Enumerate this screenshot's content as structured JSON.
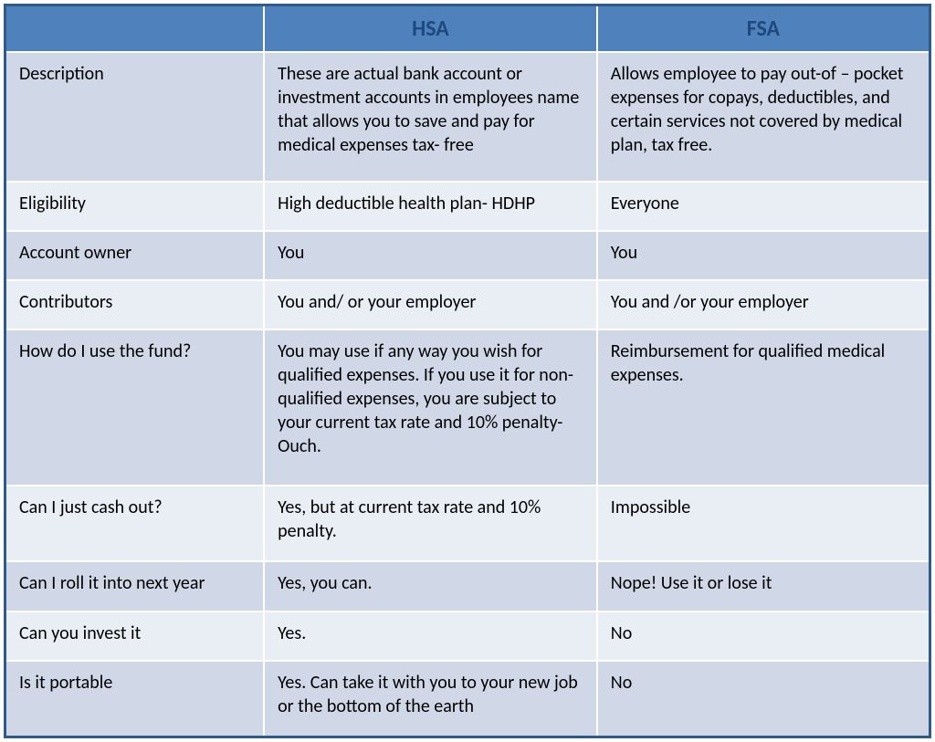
{
  "table": {
    "type": "table",
    "colors": {
      "header_bg": "#4f81bd",
      "header_text": "#1f497d",
      "row_odd_bg": "#d0d8e8",
      "row_even_bg": "#e9edf4",
      "outer_border": "#2f5a8a",
      "cell_border": "#ffffff",
      "body_text": "#000000"
    },
    "typography": {
      "font_family": "Calibri",
      "header_fontsize_pt": 18,
      "header_fontweight": "bold",
      "body_fontsize_pt": 15
    },
    "column_widths_pct": [
      28,
      36,
      36
    ],
    "columns": [
      "",
      "HSA",
      "FSA"
    ],
    "rows": [
      {
        "label": "Description",
        "hsa": "These are actual bank account or investment accounts in employees name that allows you to save and pay for medical expenses tax- free",
        "fsa": "Allows employee to pay out-of – pocket expenses for copays, deductibles, and certain services not covered by medical plan, tax free."
      },
      {
        "label": "Eligibility",
        "hsa": "High deductible health plan- HDHP",
        "fsa": "Everyone"
      },
      {
        "label": "Account owner",
        "hsa": " You",
        "fsa": "  You"
      },
      {
        "label": "Contributors",
        "hsa": " You and/ or your employer",
        "fsa": " You and /or your employer"
      },
      {
        "label": "How do I use the fund?",
        "hsa": "You may use if any way you wish for qualified expenses. If you use it for non-qualified expenses, you are subject to your current tax rate and 10% penalty- Ouch.",
        "fsa": "Reimbursement for qualified medical expenses."
      },
      {
        "label": "Can I just cash out?",
        "hsa": " Yes, but at current tax rate and 10% penalty.",
        "fsa": "Impossible"
      },
      {
        "label": "Can I roll it into next year",
        "hsa": "Yes, you can.",
        "fsa": "Nope! Use it or lose it"
      },
      {
        "label": "Can you invest it",
        "hsa": "Yes.",
        "fsa": "No"
      },
      {
        "label": "Is it portable",
        "hsa": "Yes. Can take it with you to your new job or the bottom of the earth",
        "fsa": "No"
      }
    ]
  }
}
